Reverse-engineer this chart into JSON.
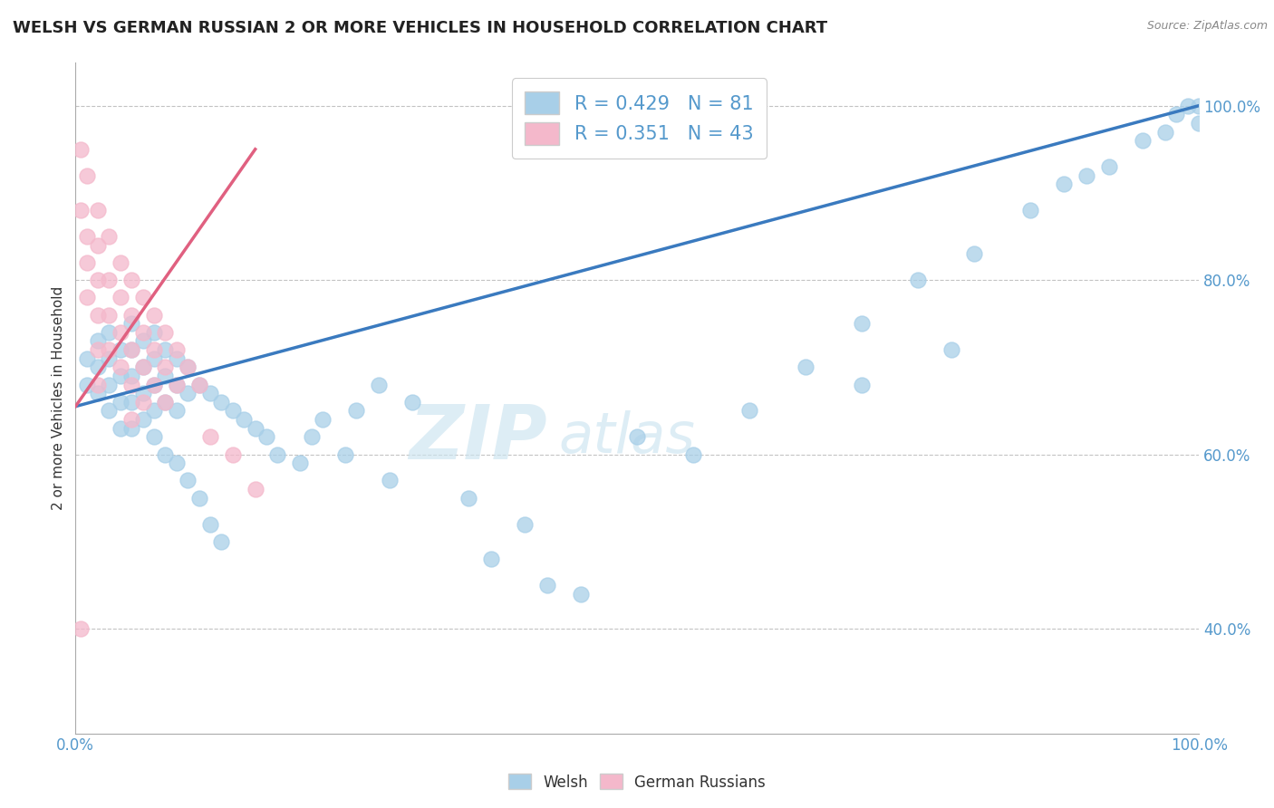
{
  "title": "WELSH VS GERMAN RUSSIAN 2 OR MORE VEHICLES IN HOUSEHOLD CORRELATION CHART",
  "source": "Source: ZipAtlas.com",
  "ylabel": "2 or more Vehicles in Household",
  "xlim": [
    0.0,
    1.0
  ],
  "ylim": [
    0.28,
    1.05
  ],
  "xticks": [
    0.0,
    0.1,
    0.2,
    0.3,
    0.4,
    0.5,
    0.6,
    0.7,
    0.8,
    0.9,
    1.0
  ],
  "xticklabels": [
    "0.0%",
    "",
    "",
    "",
    "",
    "",
    "",
    "",
    "",
    "",
    "100.0%"
  ],
  "ytick_positions": [
    0.4,
    0.6,
    0.8,
    1.0
  ],
  "yticklabels": [
    "40.0%",
    "60.0%",
    "80.0%",
    "100.0%"
  ],
  "welsh_color": "#a8cfe8",
  "german_russian_color": "#f4b8cb",
  "welsh_line_color": "#3a7abf",
  "german_russian_line_color": "#e06080",
  "R_welsh": 0.429,
  "N_welsh": 81,
  "R_german": 0.351,
  "N_german": 43,
  "watermark_zip": "ZIP",
  "watermark_atlas": "atlas",
  "welsh_x": [
    0.01,
    0.01,
    0.02,
    0.02,
    0.02,
    0.03,
    0.03,
    0.03,
    0.03,
    0.04,
    0.04,
    0.04,
    0.04,
    0.05,
    0.05,
    0.05,
    0.05,
    0.05,
    0.06,
    0.06,
    0.06,
    0.06,
    0.07,
    0.07,
    0.07,
    0.07,
    0.07,
    0.08,
    0.08,
    0.08,
    0.08,
    0.09,
    0.09,
    0.09,
    0.09,
    0.1,
    0.1,
    0.1,
    0.11,
    0.11,
    0.12,
    0.12,
    0.13,
    0.13,
    0.14,
    0.15,
    0.16,
    0.17,
    0.18,
    0.2,
    0.21,
    0.22,
    0.24,
    0.25,
    0.27,
    0.28,
    0.3,
    0.35,
    0.37,
    0.4,
    0.42,
    0.45,
    0.5,
    0.55,
    0.6,
    0.65,
    0.7,
    0.75,
    0.8,
    0.85,
    0.88,
    0.9,
    0.92,
    0.95,
    0.97,
    0.98,
    0.99,
    1.0,
    1.0,
    0.78,
    0.7
  ],
  "welsh_y": [
    0.71,
    0.68,
    0.73,
    0.7,
    0.67,
    0.74,
    0.71,
    0.68,
    0.65,
    0.72,
    0.69,
    0.66,
    0.63,
    0.75,
    0.72,
    0.69,
    0.66,
    0.63,
    0.73,
    0.7,
    0.67,
    0.64,
    0.74,
    0.71,
    0.68,
    0.65,
    0.62,
    0.72,
    0.69,
    0.66,
    0.6,
    0.71,
    0.68,
    0.65,
    0.59,
    0.7,
    0.67,
    0.57,
    0.68,
    0.55,
    0.67,
    0.52,
    0.66,
    0.5,
    0.65,
    0.64,
    0.63,
    0.62,
    0.6,
    0.59,
    0.62,
    0.64,
    0.6,
    0.65,
    0.68,
    0.57,
    0.66,
    0.55,
    0.48,
    0.52,
    0.45,
    0.44,
    0.62,
    0.6,
    0.65,
    0.7,
    0.75,
    0.8,
    0.83,
    0.88,
    0.91,
    0.92,
    0.93,
    0.96,
    0.97,
    0.99,
    1.0,
    1.0,
    0.98,
    0.72,
    0.68
  ],
  "german_x": [
    0.005,
    0.005,
    0.01,
    0.01,
    0.01,
    0.01,
    0.02,
    0.02,
    0.02,
    0.02,
    0.02,
    0.02,
    0.03,
    0.03,
    0.03,
    0.03,
    0.04,
    0.04,
    0.04,
    0.04,
    0.05,
    0.05,
    0.05,
    0.05,
    0.05,
    0.06,
    0.06,
    0.06,
    0.06,
    0.07,
    0.07,
    0.07,
    0.08,
    0.08,
    0.08,
    0.09,
    0.09,
    0.1,
    0.11,
    0.12,
    0.14,
    0.16,
    0.005
  ],
  "german_y": [
    0.95,
    0.88,
    0.92,
    0.85,
    0.82,
    0.78,
    0.88,
    0.84,
    0.8,
    0.76,
    0.72,
    0.68,
    0.85,
    0.8,
    0.76,
    0.72,
    0.82,
    0.78,
    0.74,
    0.7,
    0.8,
    0.76,
    0.72,
    0.68,
    0.64,
    0.78,
    0.74,
    0.7,
    0.66,
    0.76,
    0.72,
    0.68,
    0.74,
    0.7,
    0.66,
    0.72,
    0.68,
    0.7,
    0.68,
    0.62,
    0.6,
    0.56,
    0.4
  ],
  "welsh_line_x": [
    0.0,
    1.0
  ],
  "welsh_line_y": [
    0.655,
    1.0
  ],
  "german_line_x": [
    0.0,
    0.16
  ],
  "german_line_y": [
    0.655,
    0.95
  ]
}
